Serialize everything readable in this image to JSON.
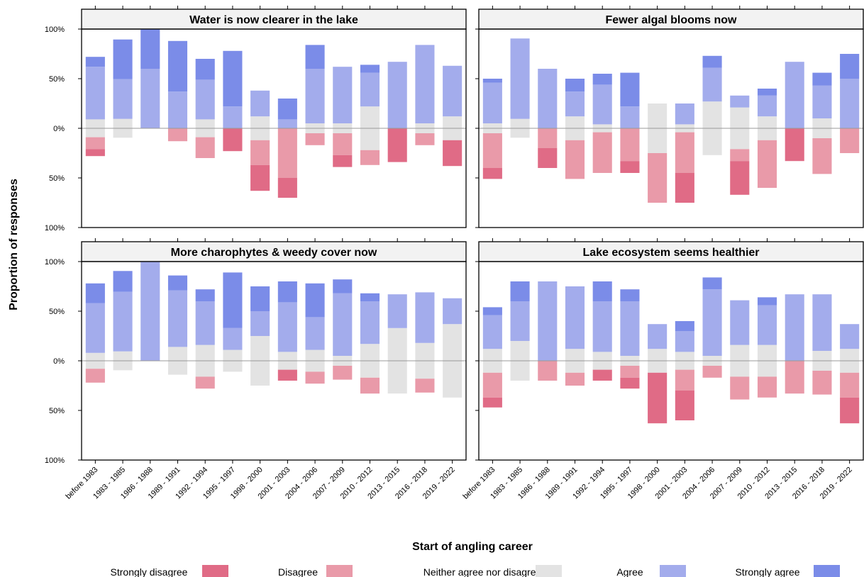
{
  "chart_data": [
    {
      "type": "diverging_bar",
      "title": "Water is now clearer in the lake",
      "x_label": "Start of angling career",
      "y_label": "Proportion of responses",
      "ylim": [
        -100,
        100
      ],
      "yticks": [
        {
          "value": -100,
          "label": "100%"
        },
        {
          "value": -50,
          "label": "50%"
        },
        {
          "value": 0,
          "label": "0%"
        },
        {
          "value": 50,
          "label": "50%"
        },
        {
          "value": 100,
          "label": "100%"
        }
      ],
      "series": [
        {
          "name": "Strongly disagree",
          "color": "#e06b86",
          "values": [
            7,
            0,
            0,
            0,
            0,
            23,
            26,
            20,
            0,
            12,
            0,
            34,
            0,
            26
          ]
        },
        {
          "name": "Disagree",
          "color": "#e99aa9",
          "values": [
            12,
            0,
            0,
            13,
            21,
            0,
            25,
            50,
            12,
            22,
            15,
            0,
            12,
            0
          ]
        },
        {
          "name": "Neither agree nor disagree",
          "color": "#e3e3e3",
          "values": [
            18,
            19,
            0,
            0,
            18,
            0,
            24,
            0,
            10,
            10,
            44,
            0,
            10,
            24
          ]
        },
        {
          "name": "Agree",
          "color": "#a3acec",
          "values": [
            53,
            40,
            60,
            37,
            40,
            22,
            26,
            9,
            55,
            57,
            34,
            67,
            79,
            51
          ]
        },
        {
          "name": "Strongly agree",
          "color": "#7b8ce8",
          "values": [
            10,
            40,
            40,
            51,
            21,
            56,
            0,
            21,
            24,
            0,
            8,
            0,
            0,
            0
          ]
        }
      ]
    },
    {
      "type": "diverging_bar",
      "title": "Fewer algal blooms now",
      "ylim": [
        -100,
        100
      ],
      "yticks": [
        -100,
        -50,
        0,
        50,
        100
      ],
      "series": [
        {
          "name": "Strongly disagree",
          "color": "#e06b86",
          "values": [
            11,
            0,
            20,
            0,
            0,
            12,
            0,
            30,
            0,
            34,
            0,
            33,
            0,
            0
          ]
        },
        {
          "name": "Disagree",
          "color": "#e99aa9",
          "values": [
            35,
            0,
            20,
            39,
            41,
            33,
            50,
            41,
            0,
            12,
            48,
            0,
            36,
            25
          ]
        },
        {
          "name": "Neither agree nor disagree",
          "color": "#e3e3e3",
          "values": [
            10,
            19,
            0,
            24,
            8,
            0,
            50,
            8,
            54,
            42,
            24,
            0,
            20,
            0
          ]
        },
        {
          "name": "Agree",
          "color": "#a3acec",
          "values": [
            41,
            81,
            60,
            25,
            40,
            22,
            0,
            21,
            34,
            12,
            21,
            67,
            33,
            50
          ]
        },
        {
          "name": "Strongly agree",
          "color": "#7b8ce8",
          "values": [
            4,
            0,
            0,
            13,
            11,
            34,
            0,
            0,
            12,
            0,
            7,
            0,
            13,
            25
          ]
        }
      ]
    },
    {
      "type": "diverging_bar",
      "title": "More charophytes & weedy cover now",
      "categories": [
        "before 1983",
        "1983 - 1985",
        "1986 - 1988",
        "1989 - 1991",
        "1992 - 1994",
        "1995 - 1997",
        "1998 - 2000",
        "2001 - 2003",
        "2004 - 2006",
        "2007 - 2009",
        "2010 - 2012",
        "2013 - 2015",
        "2016 - 2018",
        "2019 - 2022"
      ],
      "ylim": [
        -100,
        100
      ],
      "yticks": [
        {
          "value": -100,
          "label": "100%"
        },
        {
          "value": -50,
          "label": "50%"
        },
        {
          "value": 0,
          "label": "0%"
        },
        {
          "value": 50,
          "label": "50%"
        },
        {
          "value": 100,
          "label": "100%"
        }
      ],
      "series": [
        {
          "name": "Strongly disagree",
          "color": "#e06b86",
          "values": [
            0,
            0,
            0,
            0,
            0,
            0,
            0,
            11,
            0,
            0,
            0,
            0,
            0,
            0
          ]
        },
        {
          "name": "Disagree",
          "color": "#e99aa9",
          "values": [
            14,
            0,
            0,
            0,
            12,
            0,
            0,
            0,
            12,
            14,
            16,
            0,
            14,
            0
          ]
        },
        {
          "name": "Neither agree nor disagree",
          "color": "#e3e3e3",
          "values": [
            16,
            19,
            0,
            28,
            32,
            22,
            50,
            18,
            22,
            10,
            34,
            66,
            36,
            74
          ]
        },
        {
          "name": "Agree",
          "color": "#a3acec",
          "values": [
            50,
            60,
            100,
            57,
            44,
            22,
            25,
            50,
            33,
            63,
            43,
            34,
            51,
            26
          ]
        },
        {
          "name": "Strongly agree",
          "color": "#7b8ce8",
          "values": [
            20,
            21,
            0,
            15,
            12,
            56,
            25,
            21,
            34,
            14,
            8,
            0,
            0,
            0
          ]
        }
      ]
    },
    {
      "type": "diverging_bar",
      "title": "Lake ecosystem seems healthier",
      "categories": [
        "before 1983",
        "1983 - 1985",
        "1986 - 1988",
        "1989 - 1991",
        "1992 - 1994",
        "1995 - 1997",
        "1998 - 2000",
        "2001 - 2003",
        "2004 - 2006",
        "2007 - 2009",
        "2010 - 2012",
        "2013 - 2015",
        "2016 - 2018",
        "2019 - 2022"
      ],
      "ylim": [
        -100,
        100
      ],
      "yticks": [
        -100,
        -50,
        0,
        50,
        100
      ],
      "series": [
        {
          "name": "Strongly disagree",
          "color": "#e06b86",
          "values": [
            10,
            0,
            0,
            0,
            11,
            11,
            51,
            30,
            0,
            0,
            0,
            0,
            0,
            26
          ]
        },
        {
          "name": "Disagree",
          "color": "#e99aa9",
          "values": [
            25,
            0,
            20,
            13,
            0,
            12,
            0,
            21,
            12,
            23,
            21,
            33,
            24,
            25
          ]
        },
        {
          "name": "Neither agree nor disagree",
          "color": "#e3e3e3",
          "values": [
            24,
            40,
            0,
            24,
            18,
            10,
            24,
            18,
            10,
            32,
            32,
            0,
            20,
            24
          ]
        },
        {
          "name": "Agree",
          "color": "#a3acec",
          "values": [
            34,
            40,
            80,
            63,
            51,
            55,
            25,
            21,
            67,
            45,
            40,
            67,
            57,
            25
          ]
        },
        {
          "name": "Strongly agree",
          "color": "#7b8ce8",
          "values": [
            8,
            20,
            0,
            0,
            20,
            12,
            0,
            10,
            12,
            0,
            8,
            0,
            0,
            0
          ]
        }
      ]
    }
  ]
}
